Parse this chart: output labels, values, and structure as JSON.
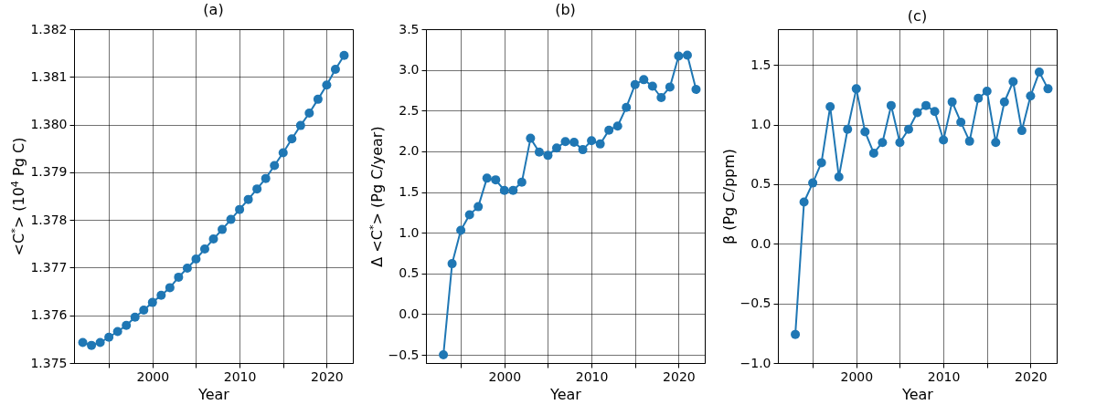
{
  "chart_data": [
    {
      "type": "line",
      "title": "(a)",
      "xlabel": "Year",
      "ylabel": "<C$^{*}$> (10$^{4}$ Pg C)",
      "x": [
        1992,
        1993,
        1994,
        1995,
        1996,
        1997,
        1998,
        1999,
        2000,
        2001,
        2002,
        2003,
        2004,
        2005,
        2006,
        2007,
        2008,
        2009,
        2010,
        2011,
        2012,
        2013,
        2014,
        2015,
        2016,
        2017,
        2018,
        2019,
        2020,
        2021,
        2022
      ],
      "series": [
        {
          "color": "#1f77b4",
          "values": [
            1.37543,
            1.37537,
            1.37543,
            1.37554,
            1.37566,
            1.37579,
            1.37596,
            1.37611,
            1.37627,
            1.37642,
            1.37658,
            1.3768,
            1.37699,
            1.37718,
            1.37739,
            1.3776,
            1.3778,
            1.37801,
            1.37822,
            1.37843,
            1.37865,
            1.37887,
            1.37914,
            1.37941,
            1.3797,
            1.37998,
            1.38024,
            1.38053,
            1.38083,
            1.38116,
            1.38145
          ]
        }
      ],
      "xlim": [
        1991,
        2023
      ],
      "xticks": [
        {
          "value": 1995,
          "label": null
        },
        2000,
        {
          "value": 2005,
          "label": null
        },
        2010,
        {
          "value": 2015,
          "label": null
        },
        2020
      ],
      "ylim": [
        1.375,
        1.382
      ],
      "yticks": [
        1.375,
        1.376,
        1.377,
        1.378,
        1.379,
        {
          "value": 1.38,
          "label": "1.380"
        },
        1.381,
        1.382
      ],
      "grid": true,
      "marker": "circle",
      "line_style": "solid"
    },
    {
      "type": "line",
      "title": "(b)",
      "xlabel": "Year",
      "ylabel": "Δ <C$^{*}$>  (Pg C/year)",
      "x": [
        1993,
        1994,
        1995,
        1996,
        1997,
        1998,
        1999,
        2000,
        2001,
        2002,
        2003,
        2004,
        2005,
        2006,
        2007,
        2008,
        2009,
        2010,
        2011,
        2012,
        2013,
        2014,
        2015,
        2016,
        2017,
        2018,
        2019,
        2020,
        2021,
        2022
      ],
      "series": [
        {
          "color": "#1f77b4",
          "values": [
            -0.5,
            0.62,
            1.03,
            1.22,
            1.32,
            1.67,
            1.65,
            1.52,
            1.52,
            1.62,
            2.16,
            1.99,
            1.95,
            2.04,
            2.12,
            2.11,
            2.02,
            2.13,
            2.09,
            2.26,
            2.31,
            2.54,
            2.82,
            2.88,
            2.8,
            2.66,
            2.79,
            3.17,
            3.18,
            2.76
          ]
        }
      ],
      "xlim": [
        1991,
        2023
      ],
      "xticks": [
        {
          "value": 1995,
          "label": null
        },
        2000,
        {
          "value": 2005,
          "label": null
        },
        2010,
        {
          "value": 2015,
          "label": null
        },
        2020
      ],
      "ylim": [
        -0.6,
        3.5
      ],
      "yticks": [
        {
          "value": -0.5,
          "label": "−0.5"
        },
        {
          "value": 0,
          "label": "0.0"
        },
        0.5,
        {
          "value": 1,
          "label": "1.0"
        },
        1.5,
        {
          "value": 2,
          "label": "2.0"
        },
        2.5,
        {
          "value": 3,
          "label": "3.0"
        },
        3.5
      ],
      "grid": true,
      "marker": "circle",
      "line_style": "solid"
    },
    {
      "type": "line",
      "title": "(c)",
      "xlabel": "Year",
      "ylabel": "β  (Pg C/ppm)",
      "x": [
        1993,
        1994,
        1995,
        1996,
        1997,
        1998,
        1999,
        2000,
        2001,
        2002,
        2003,
        2004,
        2005,
        2006,
        2007,
        2008,
        2009,
        2010,
        2011,
        2012,
        2013,
        2014,
        2015,
        2016,
        2017,
        2018,
        2019,
        2020,
        2021,
        2022
      ],
      "series": [
        {
          "color": "#1f77b4",
          "values": [
            -0.76,
            0.35,
            0.51,
            0.68,
            1.15,
            0.56,
            0.96,
            1.3,
            0.94,
            0.76,
            0.85,
            1.16,
            0.85,
            0.96,
            1.1,
            1.16,
            1.11,
            0.87,
            1.19,
            1.02,
            0.86,
            1.22,
            1.28,
            0.85,
            1.19,
            1.36,
            0.95,
            1.24,
            1.44,
            1.3
          ]
        }
      ],
      "xlim": [
        1991,
        2023
      ],
      "xticks": [
        {
          "value": 1995,
          "label": null
        },
        2000,
        {
          "value": 2005,
          "label": null
        },
        2010,
        {
          "value": 2015,
          "label": null
        },
        2020
      ],
      "ylim": [
        -1.0,
        1.8
      ],
      "yticks": [
        {
          "value": -1,
          "label": "−1.0"
        },
        {
          "value": -0.5,
          "label": "−0.5"
        },
        {
          "value": 0,
          "label": "0.0"
        },
        0.5,
        {
          "value": 1,
          "label": "1.0"
        },
        1.5
      ],
      "grid": true,
      "marker": "circle",
      "line_style": "solid"
    }
  ]
}
